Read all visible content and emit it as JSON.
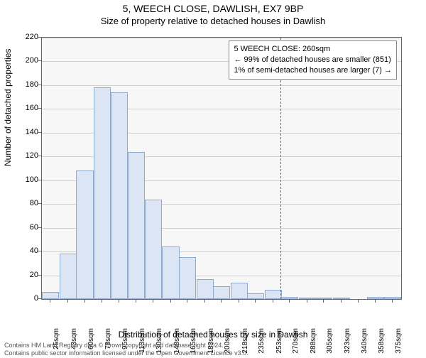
{
  "title_main": "5, WEECH CLOSE, DAWLISH, EX7 9BP",
  "title_sub": "Size of property relative to detached houses in Dawlish",
  "y_axis_label": "Number of detached properties",
  "x_axis_label": "Distribution of detached houses by size in Dawlish",
  "footer_line1": "Contains HM Land Registry data © Crown copyright and database right 2024.",
  "footer_line2": "Contains public sector information licensed under the Open Government Licence v3.0.",
  "tooltip": {
    "line1": "5 WEECH CLOSE: 260sqm",
    "line2": "← 99% of detached houses are smaller (851)",
    "line3": "1% of semi-detached houses are larger (7) →"
  },
  "chart": {
    "type": "histogram",
    "plot_background": "#f7f7f7",
    "outer_background": "#ffffff",
    "grid_color": "#d0d0d0",
    "axis_color": "#666666",
    "bar_fill": "#dbe5f3",
    "bar_border": "#8faad0",
    "refline_color": "#d04040",
    "refline_value": 260,
    "ylim": [
      0,
      220
    ],
    "ytick_step": 20,
    "yticks": [
      0,
      20,
      40,
      60,
      80,
      100,
      120,
      140,
      160,
      180,
      200,
      220
    ],
    "xlim": [
      16,
      384
    ],
    "xticks": [
      25,
      43,
      60,
      78,
      95,
      113,
      130,
      148,
      165,
      183,
      200,
      218,
      235,
      253,
      270,
      288,
      305,
      323,
      340,
      358,
      375
    ],
    "xtick_unit": "sqm",
    "bar_width_units": 17.5,
    "bars": [
      {
        "center": 25,
        "value": 6
      },
      {
        "center": 43,
        "value": 38
      },
      {
        "center": 60,
        "value": 108
      },
      {
        "center": 78,
        "value": 178
      },
      {
        "center": 95,
        "value": 174
      },
      {
        "center": 113,
        "value": 124
      },
      {
        "center": 130,
        "value": 84
      },
      {
        "center": 148,
        "value": 44
      },
      {
        "center": 165,
        "value": 35
      },
      {
        "center": 183,
        "value": 17
      },
      {
        "center": 200,
        "value": 11
      },
      {
        "center": 218,
        "value": 14
      },
      {
        "center": 235,
        "value": 5
      },
      {
        "center": 253,
        "value": 8
      },
      {
        "center": 270,
        "value": 2
      },
      {
        "center": 288,
        "value": 1
      },
      {
        "center": 305,
        "value": 1
      },
      {
        "center": 323,
        "value": 1
      },
      {
        "center": 340,
        "value": 0
      },
      {
        "center": 358,
        "value": 2
      },
      {
        "center": 375,
        "value": 2
      }
    ],
    "title_fontsize": 14,
    "subtitle_fontsize": 13,
    "axis_label_fontsize": 12,
    "tick_fontsize": 11,
    "xtick_fontsize": 10
  }
}
